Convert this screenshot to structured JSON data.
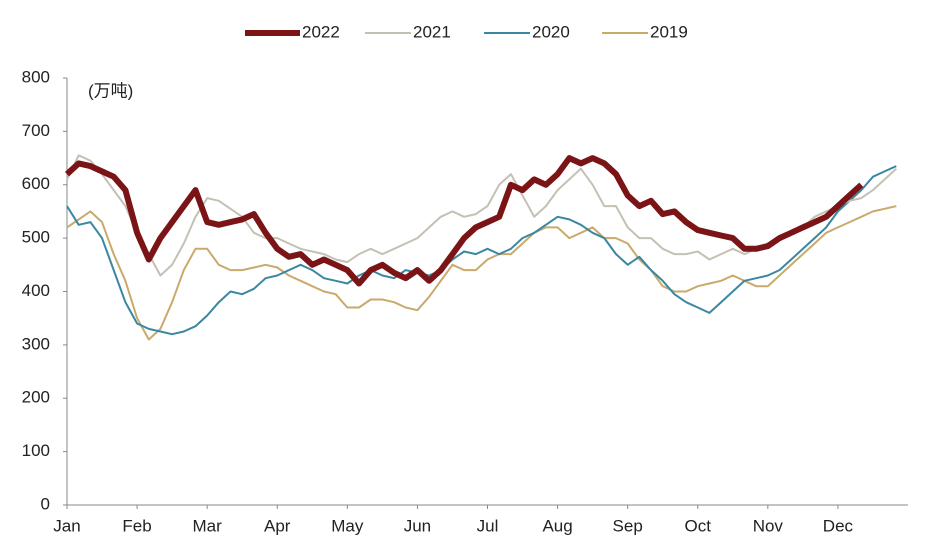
{
  "chart_data": {
    "type": "line",
    "y_label": "(万吨)",
    "categories": [
      "Jan",
      null,
      null,
      null,
      null,
      null,
      "Feb",
      null,
      null,
      null,
      null,
      null,
      "Mar",
      null,
      null,
      null,
      null,
      null,
      "Apr",
      null,
      null,
      null,
      null,
      null,
      "May",
      null,
      null,
      null,
      null,
      null,
      "Jun",
      null,
      null,
      null,
      null,
      null,
      "Jul",
      null,
      null,
      null,
      null,
      null,
      "Aug",
      null,
      null,
      null,
      null,
      null,
      "Sep",
      null,
      null,
      null,
      null,
      null,
      "Oct",
      null,
      null,
      null,
      null,
      null,
      "Nov",
      null,
      null,
      null,
      null,
      null,
      "Dec",
      null,
      null,
      null,
      null,
      null
    ],
    "ylim": [
      0,
      800
    ],
    "yticks": [
      0,
      100,
      200,
      300,
      400,
      500,
      600,
      700,
      800
    ],
    "legend": "top",
    "series": [
      {
        "name": "2022",
        "color": "#7b1416",
        "values": [
          620,
          640,
          635,
          625,
          615,
          590,
          510,
          460,
          500,
          530,
          560,
          590,
          530,
          525,
          530,
          535,
          545,
          510,
          480,
          465,
          470,
          450,
          460,
          450,
          440,
          415,
          440,
          450,
          435,
          425,
          440,
          420,
          440,
          470,
          500,
          520,
          530,
          540,
          600,
          590,
          610,
          600,
          620,
          650,
          640,
          650,
          640,
          620,
          580,
          560,
          570,
          545,
          550,
          530,
          515,
          510,
          505,
          500,
          480,
          480,
          485,
          500,
          510,
          520,
          530,
          540,
          560,
          580,
          600,
          null,
          null,
          null
        ]
      },
      {
        "name": "2021",
        "color": "#c5c0b4",
        "values": [
          610,
          655,
          645,
          620,
          590,
          560,
          510,
          470,
          430,
          450,
          490,
          540,
          575,
          570,
          555,
          540,
          510,
          500,
          500,
          490,
          480,
          475,
          470,
          460,
          455,
          470,
          480,
          470,
          480,
          490,
          500,
          520,
          540,
          550,
          540,
          545,
          560,
          600,
          620,
          580,
          540,
          560,
          590,
          610,
          630,
          600,
          560,
          560,
          520,
          500,
          500,
          480,
          470,
          470,
          475,
          460,
          470,
          480,
          470,
          480,
          490,
          500,
          510,
          520,
          540,
          550,
          560,
          570,
          575,
          590,
          610,
          630
        ]
      },
      {
        "name": "2020",
        "color": "#3a87a1",
        "values": [
          560,
          525,
          530,
          500,
          440,
          380,
          340,
          330,
          325,
          320,
          325,
          335,
          355,
          380,
          400,
          395,
          405,
          425,
          430,
          440,
          450,
          440,
          425,
          420,
          415,
          430,
          440,
          430,
          425,
          440,
          435,
          430,
          440,
          460,
          475,
          470,
          480,
          470,
          480,
          500,
          510,
          525,
          540,
          535,
          525,
          510,
          500,
          470,
          450,
          465,
          440,
          420,
          395,
          380,
          370,
          360,
          380,
          400,
          420,
          425,
          430,
          440,
          460,
          480,
          500,
          520,
          550,
          570,
          590,
          615,
          625,
          635
        ]
      },
      {
        "name": "2019",
        "color": "#c9aa6b",
        "values": [
          520,
          535,
          550,
          530,
          470,
          420,
          350,
          310,
          330,
          380,
          440,
          480,
          480,
          450,
          440,
          440,
          445,
          450,
          445,
          430,
          420,
          410,
          400,
          395,
          370,
          370,
          385,
          385,
          380,
          370,
          365,
          390,
          420,
          450,
          440,
          440,
          460,
          470,
          470,
          490,
          510,
          520,
          520,
          500,
          510,
          520,
          500,
          500,
          490,
          460,
          440,
          410,
          400,
          400,
          410,
          415,
          420,
          430,
          420,
          410,
          410,
          430,
          450,
          470,
          490,
          510,
          520,
          530,
          540,
          550,
          555,
          560
        ]
      }
    ]
  }
}
